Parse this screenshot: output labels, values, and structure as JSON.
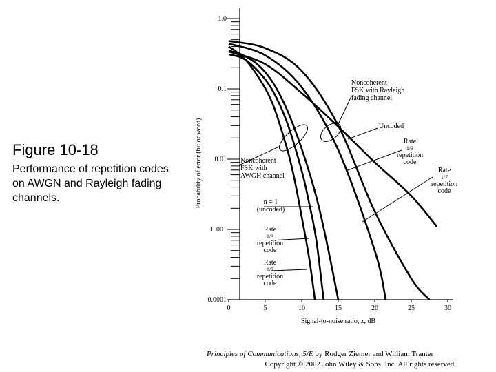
{
  "slide": {
    "title": "Figure 10-18",
    "caption": "Performance of repetition codes on AWGN and Rayleigh fading channels.",
    "credit_prefix": "Principles of Communications, 5/E",
    "credit_authors": " by Rodger Ziemer and William Tranter",
    "credit_copyright": "Copyright © 2002 John Wiley & Sons. Inc. All rights reserved."
  },
  "chart_data": {
    "type": "line",
    "title": "",
    "xlabel": "Signal-to-noise ratio, z, dB",
    "ylabel": "Probability of error (bit or word)",
    "xlim": [
      0,
      30
    ],
    "ylim": [
      0.0001,
      1.0
    ],
    "yscale": "log",
    "x_ticks": [
      0,
      5,
      10,
      15,
      20,
      25,
      30
    ],
    "y_tick_labels": [
      "1.0",
      "0.1",
      "0.01",
      "0.001",
      "0.0001"
    ],
    "y_ticks": [
      1.0,
      0.1,
      0.01,
      0.001,
      0.0001
    ],
    "series": [
      {
        "name": "AWGN n = 1 (uncoded)",
        "x": [
          0,
          2,
          4,
          6,
          8,
          9,
          10,
          11,
          11.8
        ],
        "y": [
          0.4,
          0.28,
          0.15,
          0.062,
          0.014,
          0.0052,
          0.0015,
          0.0004,
          0.0001
        ]
      },
      {
        "name": "AWGN Rate 1/3 repetition code",
        "x": [
          0,
          2,
          4,
          6,
          8,
          10,
          11,
          12,
          13
        ],
        "y": [
          0.31,
          0.27,
          0.18,
          0.095,
          0.033,
          0.0068,
          0.0024,
          0.0007,
          0.0001
        ]
      },
      {
        "name": "AWGN Rate 1/7 repetition code",
        "x": [
          0,
          2,
          4,
          6,
          8,
          10,
          12,
          13.5,
          15
        ],
        "y": [
          0.35,
          0.3,
          0.22,
          0.125,
          0.05,
          0.014,
          0.0029,
          0.0006,
          0.0001
        ]
      },
      {
        "name": "Rayleigh Uncoded",
        "x": [
          0,
          5,
          10,
          15,
          20,
          25,
          28.5
        ],
        "y": [
          0.34,
          0.225,
          0.087,
          0.029,
          0.009,
          0.003,
          0.0011
        ]
      },
      {
        "name": "Rayleigh Rate 1/3 repetition code",
        "x": [
          0,
          5,
          10,
          15,
          20,
          21.5
        ],
        "y": [
          0.44,
          0.3,
          0.105,
          0.0135,
          0.0005,
          0.0001
        ]
      },
      {
        "name": "Rayleigh Rate 1/7 repetition code",
        "x": [
          0,
          5,
          10,
          15,
          20,
          25,
          27.5
        ],
        "y": [
          0.48,
          0.38,
          0.18,
          0.03,
          0.0018,
          0.0002,
          0.0001
        ]
      }
    ],
    "annotations": [
      {
        "lines": [
          "Noncoherent",
          "FSK with Rayleigh",
          "fading channel"
        ]
      },
      {
        "lines": [
          "Uncoded"
        ]
      },
      {
        "lines": [
          "Rate",
          "1/3",
          "repetition",
          "code"
        ]
      },
      {
        "lines": [
          "Rate",
          "1/7",
          "repetition",
          "code"
        ]
      },
      {
        "lines": [
          "Noncoherent",
          "FSK with",
          "AWGH channel"
        ]
      },
      {
        "lines": [
          "n = 1",
          "(uncoded)"
        ]
      },
      {
        "lines": [
          "Rate",
          "1/3",
          "repetition",
          "code"
        ]
      },
      {
        "lines": [
          "Rate",
          "1/7",
          "repetition",
          "code"
        ]
      }
    ]
  }
}
